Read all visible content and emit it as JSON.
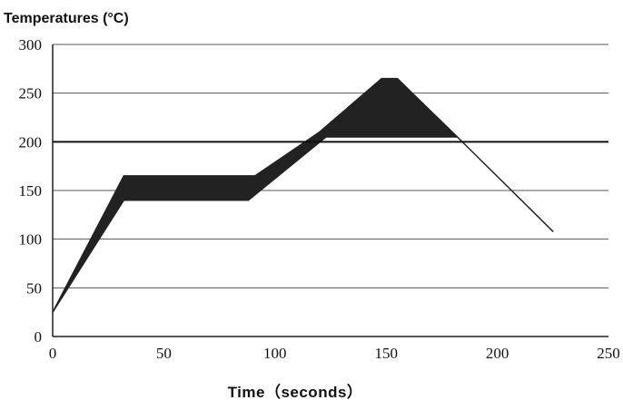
{
  "chart_data": {
    "type": "area",
    "ylabel": "Temperatures (°C)",
    "xlabel": "Time（seconds）",
    "xlim": [
      0,
      250
    ],
    "ylim": [
      0,
      300
    ],
    "x_ticks": [
      "0",
      "50",
      "100",
      "150",
      "200",
      "250"
    ],
    "y_ticks": [
      "0",
      "50",
      "100",
      "150",
      "200",
      "250",
      "300"
    ],
    "grid": "horizontal",
    "reference_line_y": 200,
    "series": [
      {
        "upper": [
          [
            0,
            25
          ],
          [
            32,
            165
          ],
          [
            91,
            165
          ],
          [
            120,
            210
          ],
          [
            148,
            265
          ],
          [
            155,
            265
          ],
          [
            182,
            205
          ],
          [
            225,
            108
          ]
        ],
        "lower": [
          [
            0,
            25
          ],
          [
            32,
            140
          ],
          [
            88,
            140
          ],
          [
            123,
            205
          ],
          [
            182,
            205
          ],
          [
            225,
            108
          ]
        ]
      }
    ],
    "colors": {
      "fill": "#222222",
      "grid": "#555555",
      "axis": "#222222"
    }
  }
}
